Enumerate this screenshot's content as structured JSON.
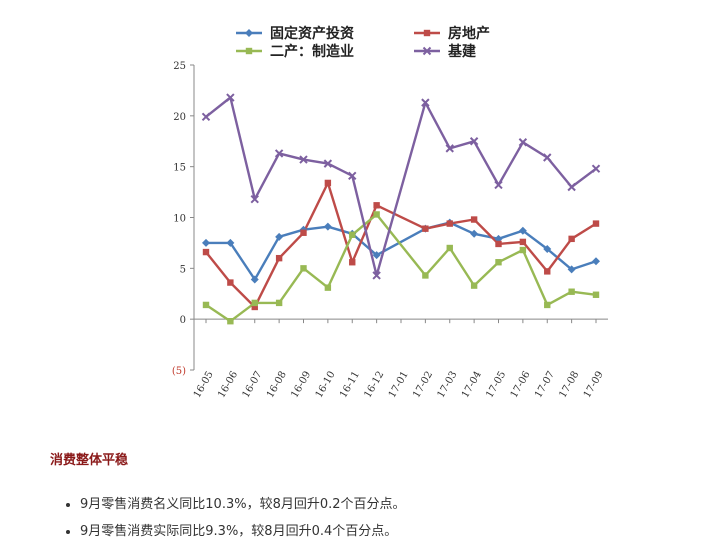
{
  "chart_data": {
    "type": "line",
    "categories": [
      "16-05",
      "16-06",
      "16-07",
      "16-08",
      "16-09",
      "16-10",
      "16-11",
      "16-12",
      "17-01",
      "17-02",
      "17-03",
      "17-04",
      "17-05",
      "17-06",
      "17-07",
      "17-08",
      "17-09"
    ],
    "yticks": [
      "25",
      "20",
      "15",
      "10",
      "5",
      "0",
      "(5)"
    ],
    "ylim": [
      -5,
      25
    ],
    "legend_position": "top",
    "series": [
      {
        "name": "固定资产投资",
        "color": "#4a7ebb",
        "marker": "diamond",
        "values": [
          7.5,
          7.5,
          3.9,
          8.1,
          8.8,
          9.1,
          8.4,
          6.3,
          null,
          8.9,
          9.5,
          8.4,
          7.9,
          8.7,
          6.9,
          4.9,
          5.7
        ]
      },
      {
        "name": "房地产",
        "color": "#be4b48",
        "marker": "square",
        "values": [
          6.6,
          3.6,
          1.2,
          6.0,
          8.5,
          13.4,
          5.6,
          11.2,
          null,
          8.9,
          9.4,
          9.8,
          7.4,
          7.6,
          4.7,
          7.9,
          9.4
        ]
      },
      {
        "name": "二产：制造业",
        "color": "#98b954",
        "marker": "square",
        "values": [
          1.4,
          -0.2,
          1.6,
          1.6,
          5.0,
          3.1,
          8.3,
          10.3,
          null,
          4.3,
          7.0,
          3.3,
          5.6,
          6.8,
          1.4,
          2.7,
          2.4
        ]
      },
      {
        "name": "基建",
        "color": "#7d60a0",
        "marker": "cross",
        "values": [
          19.9,
          21.8,
          11.8,
          16.3,
          15.7,
          15.3,
          14.1,
          4.3,
          null,
          21.3,
          16.8,
          17.5,
          13.2,
          17.4,
          15.9,
          13.0,
          14.8
        ]
      }
    ]
  },
  "article": {
    "section_title": "消费整体平稳",
    "bullets": [
      "9月零售消费名义同比10.3%，较8月回升0.2个百分点。",
      "9月零售消费实际同比9.3%，较8月回升0.4个百分点。"
    ]
  }
}
